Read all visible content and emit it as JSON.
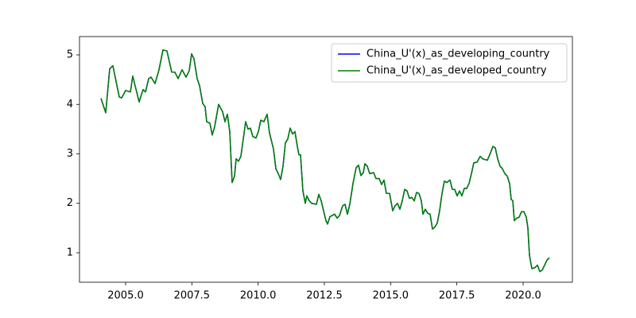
{
  "chart_data": {
    "type": "line",
    "x": [
      2004.07,
      2004.25,
      2004.4,
      2004.52,
      2004.76,
      2004.85,
      2005.0,
      2005.18,
      2005.27,
      2005.51,
      2005.66,
      2005.75,
      2005.87,
      2005.96,
      2006.11,
      2006.26,
      2006.41,
      2006.56,
      2006.74,
      2006.86,
      2006.98,
      2007.13,
      2007.28,
      2007.4,
      2007.49,
      2007.58,
      2007.7,
      2007.79,
      2007.91,
      2008.0,
      2008.06,
      2008.18,
      2008.27,
      2008.36,
      2008.51,
      2008.66,
      2008.75,
      2008.84,
      2008.93,
      2009.02,
      2009.11,
      2009.17,
      2009.26,
      2009.35,
      2009.44,
      2009.53,
      2009.62,
      2009.71,
      2009.8,
      2009.92,
      2010.01,
      2010.1,
      2010.22,
      2010.34,
      2010.43,
      2010.58,
      2010.67,
      2010.76,
      2010.85,
      2010.94,
      2011.03,
      2011.12,
      2011.21,
      2011.3,
      2011.39,
      2011.48,
      2011.54,
      2011.6,
      2011.69,
      2011.78,
      2011.84,
      2011.93,
      2012.02,
      2012.2,
      2012.29,
      2012.38,
      2012.47,
      2012.56,
      2012.62,
      2012.71,
      2012.89,
      2012.98,
      2013.07,
      2013.19,
      2013.28,
      2013.37,
      2013.46,
      2013.58,
      2013.7,
      2013.79,
      2013.88,
      2013.97,
      2014.03,
      2014.12,
      2014.21,
      2014.36,
      2014.45,
      2014.57,
      2014.66,
      2014.75,
      2014.84,
      2014.96,
      2015.08,
      2015.17,
      2015.26,
      2015.35,
      2015.44,
      2015.53,
      2015.62,
      2015.71,
      2015.8,
      2015.89,
      2015.98,
      2016.07,
      2016.16,
      2016.22,
      2016.31,
      2016.4,
      2016.49,
      2016.58,
      2016.67,
      2016.76,
      2016.85,
      2016.94,
      2017.03,
      2017.12,
      2017.24,
      2017.33,
      2017.42,
      2017.51,
      2017.6,
      2017.69,
      2017.78,
      2017.87,
      2017.96,
      2018.05,
      2018.14,
      2018.26,
      2018.38,
      2018.47,
      2018.65,
      2018.77,
      2018.86,
      2018.95,
      2019.04,
      2019.13,
      2019.22,
      2019.31,
      2019.4,
      2019.49,
      2019.55,
      2019.61,
      2019.67,
      2019.76,
      2019.85,
      2019.94,
      2020.03,
      2020.12,
      2020.18,
      2020.24,
      2020.33,
      2020.45,
      2020.54,
      2020.63,
      2020.72,
      2020.81,
      2020.9,
      2020.99
    ],
    "series": [
      {
        "name": "China_U'(x)_as_developing_country",
        "color": "#0000ff",
        "values": [
          4.12,
          3.83,
          4.72,
          4.78,
          4.15,
          4.13,
          4.28,
          4.25,
          4.57,
          4.05,
          4.3,
          4.25,
          4.52,
          4.55,
          4.42,
          4.7,
          5.1,
          5.08,
          4.65,
          4.65,
          4.52,
          4.7,
          4.55,
          4.68,
          5.02,
          4.92,
          4.52,
          4.38,
          4.02,
          3.95,
          3.65,
          3.62,
          3.38,
          3.55,
          4.0,
          3.85,
          3.65,
          3.8,
          3.45,
          2.42,
          2.55,
          2.9,
          2.85,
          2.95,
          3.3,
          3.65,
          3.5,
          3.52,
          3.35,
          3.32,
          3.45,
          3.68,
          3.65,
          3.8,
          3.42,
          3.1,
          2.7,
          2.6,
          2.48,
          2.75,
          3.22,
          3.3,
          3.52,
          3.4,
          3.45,
          3.15,
          2.98,
          2.98,
          2.25,
          2.0,
          2.15,
          2.05,
          2.0,
          1.98,
          2.18,
          2.05,
          1.85,
          1.65,
          1.58,
          1.73,
          1.78,
          1.7,
          1.75,
          1.95,
          1.98,
          1.78,
          1.98,
          2.4,
          2.72,
          2.77,
          2.56,
          2.62,
          2.8,
          2.75,
          2.6,
          2.62,
          2.5,
          2.5,
          2.38,
          2.47,
          2.2,
          2.2,
          1.85,
          1.95,
          2.0,
          1.88,
          2.05,
          2.28,
          2.25,
          2.1,
          2.12,
          2.05,
          2.22,
          2.2,
          2.05,
          1.78,
          1.88,
          1.8,
          1.78,
          1.48,
          1.52,
          1.6,
          1.85,
          2.2,
          2.45,
          2.42,
          2.47,
          2.28,
          2.28,
          2.15,
          2.25,
          2.15,
          2.3,
          2.3,
          2.4,
          2.6,
          2.82,
          2.83,
          2.95,
          2.9,
          2.87,
          3.02,
          3.15,
          3.12,
          2.9,
          2.75,
          2.7,
          2.6,
          2.55,
          2.4,
          2.08,
          2.05,
          1.65,
          1.7,
          1.72,
          1.83,
          1.83,
          1.72,
          1.5,
          0.95,
          0.68,
          0.7,
          0.75,
          0.62,
          0.65,
          0.75,
          0.85,
          0.9
        ]
      },
      {
        "name": "China_U'(x)_as_developed_country",
        "color": "#008000",
        "values": [
          4.12,
          3.83,
          4.72,
          4.78,
          4.15,
          4.13,
          4.28,
          4.25,
          4.57,
          4.05,
          4.3,
          4.25,
          4.52,
          4.55,
          4.42,
          4.7,
          5.1,
          5.08,
          4.65,
          4.65,
          4.52,
          4.7,
          4.55,
          4.68,
          5.02,
          4.92,
          4.52,
          4.38,
          4.02,
          3.95,
          3.65,
          3.62,
          3.38,
          3.55,
          4.0,
          3.85,
          3.65,
          3.8,
          3.45,
          2.42,
          2.55,
          2.9,
          2.85,
          2.95,
          3.3,
          3.65,
          3.5,
          3.52,
          3.35,
          3.32,
          3.45,
          3.68,
          3.65,
          3.8,
          3.42,
          3.1,
          2.7,
          2.6,
          2.48,
          2.75,
          3.22,
          3.3,
          3.52,
          3.4,
          3.45,
          3.15,
          2.98,
          2.98,
          2.25,
          2.0,
          2.15,
          2.05,
          2.0,
          1.98,
          2.18,
          2.05,
          1.85,
          1.65,
          1.58,
          1.73,
          1.78,
          1.7,
          1.75,
          1.95,
          1.98,
          1.78,
          1.98,
          2.4,
          2.72,
          2.77,
          2.56,
          2.62,
          2.8,
          2.75,
          2.6,
          2.62,
          2.5,
          2.5,
          2.38,
          2.47,
          2.2,
          2.2,
          1.85,
          1.95,
          2.0,
          1.88,
          2.05,
          2.28,
          2.25,
          2.1,
          2.12,
          2.05,
          2.22,
          2.2,
          2.05,
          1.78,
          1.88,
          1.8,
          1.78,
          1.48,
          1.52,
          1.6,
          1.85,
          2.2,
          2.45,
          2.42,
          2.47,
          2.28,
          2.28,
          2.15,
          2.25,
          2.15,
          2.3,
          2.3,
          2.4,
          2.6,
          2.82,
          2.83,
          2.95,
          2.9,
          2.87,
          3.02,
          3.15,
          3.12,
          2.9,
          2.75,
          2.7,
          2.6,
          2.55,
          2.4,
          2.08,
          2.05,
          1.65,
          1.7,
          1.72,
          1.83,
          1.83,
          1.72,
          1.5,
          0.95,
          0.68,
          0.7,
          0.75,
          0.62,
          0.65,
          0.75,
          0.85,
          0.9
        ]
      }
    ],
    "xlim": [
      2003.26,
      2021.86
    ],
    "xticks": [
      {
        "value": 2005,
        "label": "2005.0"
      },
      {
        "value": 2007.5,
        "label": "2007.5"
      },
      {
        "value": 2010,
        "label": "2010.0"
      },
      {
        "value": 2012.5,
        "label": "2012.5"
      },
      {
        "value": 2015,
        "label": "2015.0"
      },
      {
        "value": 2017.5,
        "label": "2017.5"
      },
      {
        "value": 2020,
        "label": "2020.0"
      }
    ],
    "ylim": [
      0.405,
      5.37
    ],
    "yticks": [
      1,
      2,
      3,
      4,
      5
    ],
    "legend": "upper right"
  }
}
